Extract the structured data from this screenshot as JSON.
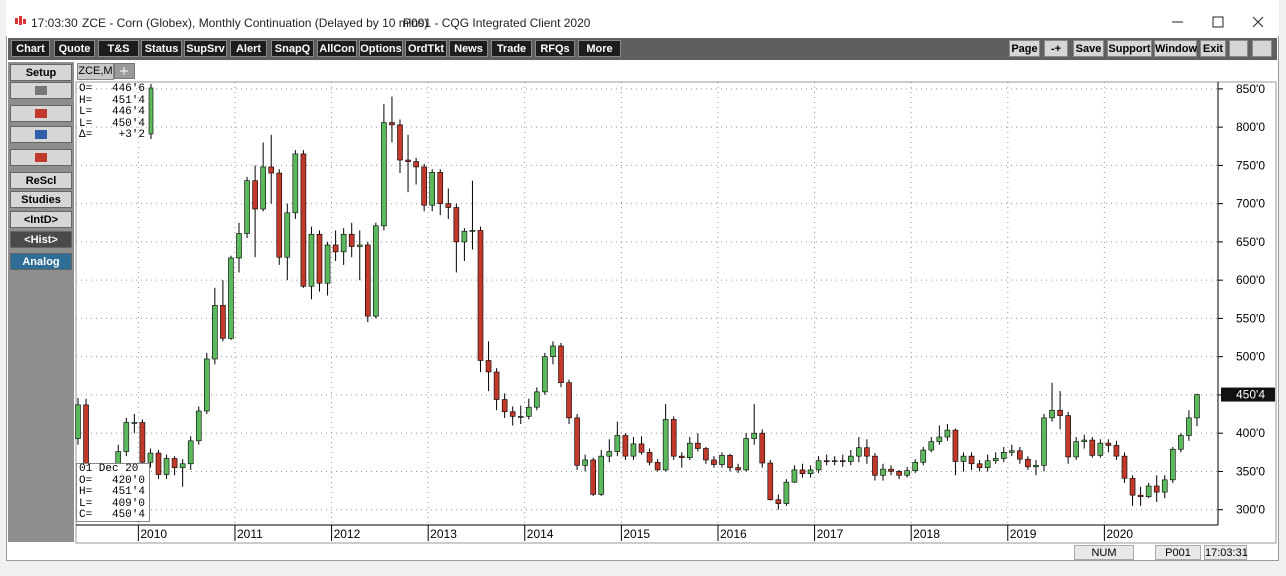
{
  "window": {
    "time": "17:03:30",
    "title": "ZCE - Corn (Globex), Monthly Continuation (Delayed by 10 mins)",
    "client": "P001 - CQG Integrated Client 2020"
  },
  "toolbar": [
    "Chart",
    "Quote",
    "T&S",
    "Status",
    "SupSrv",
    "Alert",
    "SnapQ",
    "AllCon",
    "Options",
    "OrdTkt",
    "News",
    "Trade",
    "RFQs",
    "More"
  ],
  "toolbar_right": [
    "Page",
    "-+",
    "Save",
    "Support",
    "Window",
    "Exit"
  ],
  "sidebar": [
    "Setup",
    "ReScl",
    "Studies",
    "<IntD>",
    "<Hist>",
    "Analog"
  ],
  "tab": "ZCE,M",
  "readout_top": [
    [
      "O=",
      "446'6"
    ],
    [
      "H=",
      "451'4"
    ],
    [
      "L=",
      "446'4"
    ],
    [
      "L=",
      "450'4"
    ],
    [
      "Δ=",
      "+3'2"
    ]
  ],
  "readout_bottom": {
    "date": "01 Dec 20",
    "rows": [
      [
        "O=",
        "420'0"
      ],
      [
        "H=",
        "451'4"
      ],
      [
        "L=",
        "409'0"
      ],
      [
        "C=",
        "450'4"
      ]
    ]
  },
  "status": [
    "NUM",
    "P001",
    "17:03:31"
  ],
  "chart_data": {
    "type": "candlestick",
    "up_color": "#5cb85c",
    "down_color": "#c0392b",
    "grid": true,
    "ylim": [
      280,
      859
    ],
    "yticks": [
      {
        "value": 300,
        "label": "300'0"
      },
      {
        "value": 350,
        "label": "350'0"
      },
      {
        "value": 400,
        "label": "400'0"
      },
      {
        "value": 450,
        "label": "450'0"
      },
      {
        "value": 500,
        "label": "500'0"
      },
      {
        "value": 550,
        "label": "550'0"
      },
      {
        "value": 600,
        "label": "600'0"
      },
      {
        "value": 650,
        "label": "650'0"
      },
      {
        "value": 700,
        "label": "700'0"
      },
      {
        "value": 750,
        "label": "750'0"
      },
      {
        "value": 800,
        "label": "800'0"
      },
      {
        "value": 850,
        "label": "850'0"
      }
    ],
    "last_price": {
      "value": 450.5,
      "label": "450'4"
    },
    "categories": [
      null,
      null,
      null,
      null,
      null,
      null,
      null,
      null,
      "2010",
      null,
      null,
      null,
      null,
      null,
      null,
      null,
      null,
      null,
      null,
      null,
      "2011",
      null,
      null,
      null,
      null,
      null,
      null,
      null,
      null,
      null,
      null,
      null,
      "2012",
      null,
      null,
      null,
      null,
      null,
      null,
      null,
      null,
      null,
      null,
      null,
      "2013",
      null,
      null,
      null,
      null,
      null,
      null,
      null,
      null,
      null,
      null,
      null,
      "2014",
      null,
      null,
      null,
      null,
      null,
      null,
      null,
      null,
      null,
      null,
      null,
      "2015",
      null,
      null,
      null,
      null,
      null,
      null,
      null,
      null,
      null,
      null,
      null,
      "2016",
      null,
      null,
      null,
      null,
      null,
      null,
      null,
      null,
      null,
      null,
      null,
      "2017",
      null,
      null,
      null,
      null,
      null,
      null,
      null,
      null,
      null,
      null,
      null,
      "2018",
      null,
      null,
      null,
      null,
      null,
      null,
      null,
      null,
      null,
      null,
      null,
      "2019",
      null,
      null,
      null,
      null,
      null,
      null,
      null,
      null,
      null,
      null,
      null,
      "2020",
      null,
      null,
      null,
      null,
      null,
      null,
      null,
      null,
      null,
      null,
      null
    ],
    "open": [
      393,
      437,
      347,
      320,
      328,
      344,
      376,
      414,
      414,
      362,
      374,
      346,
      367,
      355,
      360,
      390,
      429,
      497,
      567,
      524,
      629,
      661,
      730,
      693,
      748,
      740,
      630,
      688,
      765,
      592,
      660,
      596,
      646,
      637,
      660,
      644,
      646,
      553,
      671,
      806,
      803,
      757,
      755,
      748,
      698,
      741,
      700,
      695,
      650,
      664,
      665,
      495,
      480,
      444,
      428,
      422,
      422,
      434,
      454,
      500,
      514,
      466,
      420,
      358,
      365,
      320,
      370,
      376,
      397,
      370,
      386,
      375,
      362,
      352,
      418,
      370,
      368,
      387,
      380,
      365,
      359,
      371,
      355,
      352,
      393,
      400,
      361,
      313,
      308,
      336,
      352,
      347,
      352,
      364,
      363,
      364,
      363,
      370,
      381,
      370,
      345,
      353,
      350,
      345,
      351,
      362,
      378,
      389,
      395,
      404,
      363,
      370,
      360,
      355,
      364,
      367,
      375,
      377,
      366,
      356,
      358,
      420,
      430,
      423,
      369,
      389,
      391,
      371,
      387,
      384,
      370,
      341,
      319,
      317,
      331,
      323,
      339,
      379,
      397,
      420
    ],
    "high": [
      446,
      445,
      352,
      335,
      350,
      385,
      420,
      425,
      418,
      380,
      378,
      372,
      370,
      366,
      396,
      435,
      505,
      590,
      600,
      632,
      675,
      735,
      750,
      780,
      790,
      745,
      700,
      770,
      770,
      670,
      665,
      650,
      665,
      668,
      675,
      665,
      650,
      675,
      830,
      840,
      810,
      790,
      760,
      752,
      745,
      745,
      720,
      700,
      668,
      730,
      670,
      520,
      485,
      452,
      435,
      436,
      445,
      460,
      505,
      520,
      518,
      470,
      425,
      372,
      368,
      378,
      392,
      415,
      400,
      395,
      396,
      380,
      366,
      438,
      422,
      375,
      395,
      400,
      382,
      370,
      375,
      373,
      360,
      400,
      438,
      405,
      365,
      320,
      340,
      358,
      360,
      358,
      370,
      372,
      370,
      372,
      378,
      395,
      392,
      374,
      360,
      358,
      352,
      356,
      366,
      382,
      395,
      410,
      412,
      406,
      375,
      375,
      365,
      372,
      375,
      382,
      385,
      382,
      370,
      365,
      425,
      466,
      455,
      428,
      395,
      398,
      395,
      392,
      392,
      390,
      375,
      345,
      330,
      335,
      345,
      345,
      382,
      400,
      430,
      451.5
    ],
    "low": [
      385,
      340,
      310,
      312,
      320,
      338,
      370,
      400,
      355,
      355,
      340,
      340,
      345,
      330,
      352,
      385,
      425,
      490,
      520,
      522,
      610,
      655,
      630,
      690,
      700,
      620,
      600,
      680,
      590,
      575,
      585,
      580,
      625,
      620,
      630,
      600,
      545,
      550,
      665,
      780,
      740,
      715,
      725,
      690,
      690,
      685,
      680,
      610,
      625,
      640,
      480,
      455,
      430,
      420,
      410,
      412,
      418,
      430,
      450,
      490,
      460,
      412,
      352,
      350,
      318,
      318,
      362,
      370,
      365,
      365,
      372,
      358,
      350,
      350,
      365,
      355,
      365,
      376,
      360,
      355,
      355,
      350,
      348,
      350,
      385,
      355,
      312,
      300,
      305,
      335,
      342,
      342,
      348,
      358,
      358,
      356,
      358,
      362,
      360,
      338,
      338,
      345,
      340,
      342,
      348,
      358,
      375,
      385,
      390,
      345,
      350,
      352,
      350,
      350,
      360,
      362,
      370,
      360,
      352,
      345,
      350,
      415,
      405,
      360,
      365,
      380,
      368,
      368,
      375,
      365,
      335,
      305,
      305,
      315,
      310,
      315,
      335,
      375,
      390,
      409
    ],
    "close": [
      437,
      347,
      320,
      328,
      344,
      376,
      414,
      414,
      362,
      374,
      346,
      367,
      355,
      360,
      390,
      429,
      497,
      567,
      524,
      629,
      661,
      730,
      693,
      748,
      740,
      630,
      688,
      765,
      592,
      660,
      596,
      646,
      637,
      660,
      644,
      646,
      553,
      671,
      806,
      803,
      757,
      755,
      748,
      698,
      741,
      700,
      695,
      650,
      664,
      665,
      495,
      480,
      444,
      428,
      422,
      422,
      434,
      454,
      500,
      514,
      466,
      420,
      358,
      365,
      320,
      370,
      376,
      397,
      370,
      386,
      375,
      362,
      352,
      418,
      370,
      368,
      387,
      380,
      365,
      359,
      371,
      355,
      352,
      393,
      400,
      361,
      313,
      308,
      336,
      352,
      347,
      352,
      364,
      363,
      364,
      363,
      370,
      381,
      370,
      345,
      353,
      350,
      345,
      351,
      362,
      378,
      389,
      395,
      404,
      363,
      370,
      360,
      355,
      364,
      367,
      375,
      377,
      366,
      356,
      358,
      420,
      430,
      423,
      369,
      389,
      391,
      371,
      387,
      384,
      370,
      341,
      319,
      317,
      331,
      323,
      339,
      379,
      397,
      420,
      450.5
    ]
  }
}
